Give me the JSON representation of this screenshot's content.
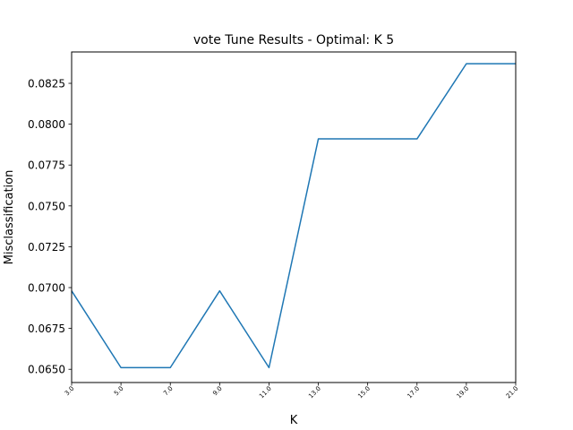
{
  "chart_data": {
    "type": "line",
    "title": "vote Tune Results - Optimal: K 5",
    "xlabel": "K",
    "ylabel": "Misclassification",
    "x": [
      3,
      5,
      7,
      9,
      11,
      13,
      15,
      17,
      19,
      21
    ],
    "x_tick_labels": [
      "3.0",
      "5.0",
      "7.0",
      "9.0",
      "11.0",
      "13.0",
      "15.0",
      "17.0",
      "19.0",
      "21.0"
    ],
    "y_ticks": [
      0.065,
      0.0675,
      0.07,
      0.0725,
      0.075,
      0.0775,
      0.08,
      0.0825
    ],
    "y_tick_labels": [
      "0.0650",
      "0.0675",
      "0.0700",
      "0.0725",
      "0.0750",
      "0.0775",
      "0.0800",
      "0.0825"
    ],
    "series": [
      {
        "values": [
          0.0698,
          0.0651,
          0.0651,
          0.0698,
          0.0651,
          0.0791,
          0.0791,
          0.0791,
          0.0837,
          0.0837
        ],
        "color": "#1f77b4"
      }
    ],
    "xlim": [
      3,
      21
    ],
    "ylim": [
      0.06419,
      0.08442
    ],
    "grid": false,
    "legend": "none"
  }
}
